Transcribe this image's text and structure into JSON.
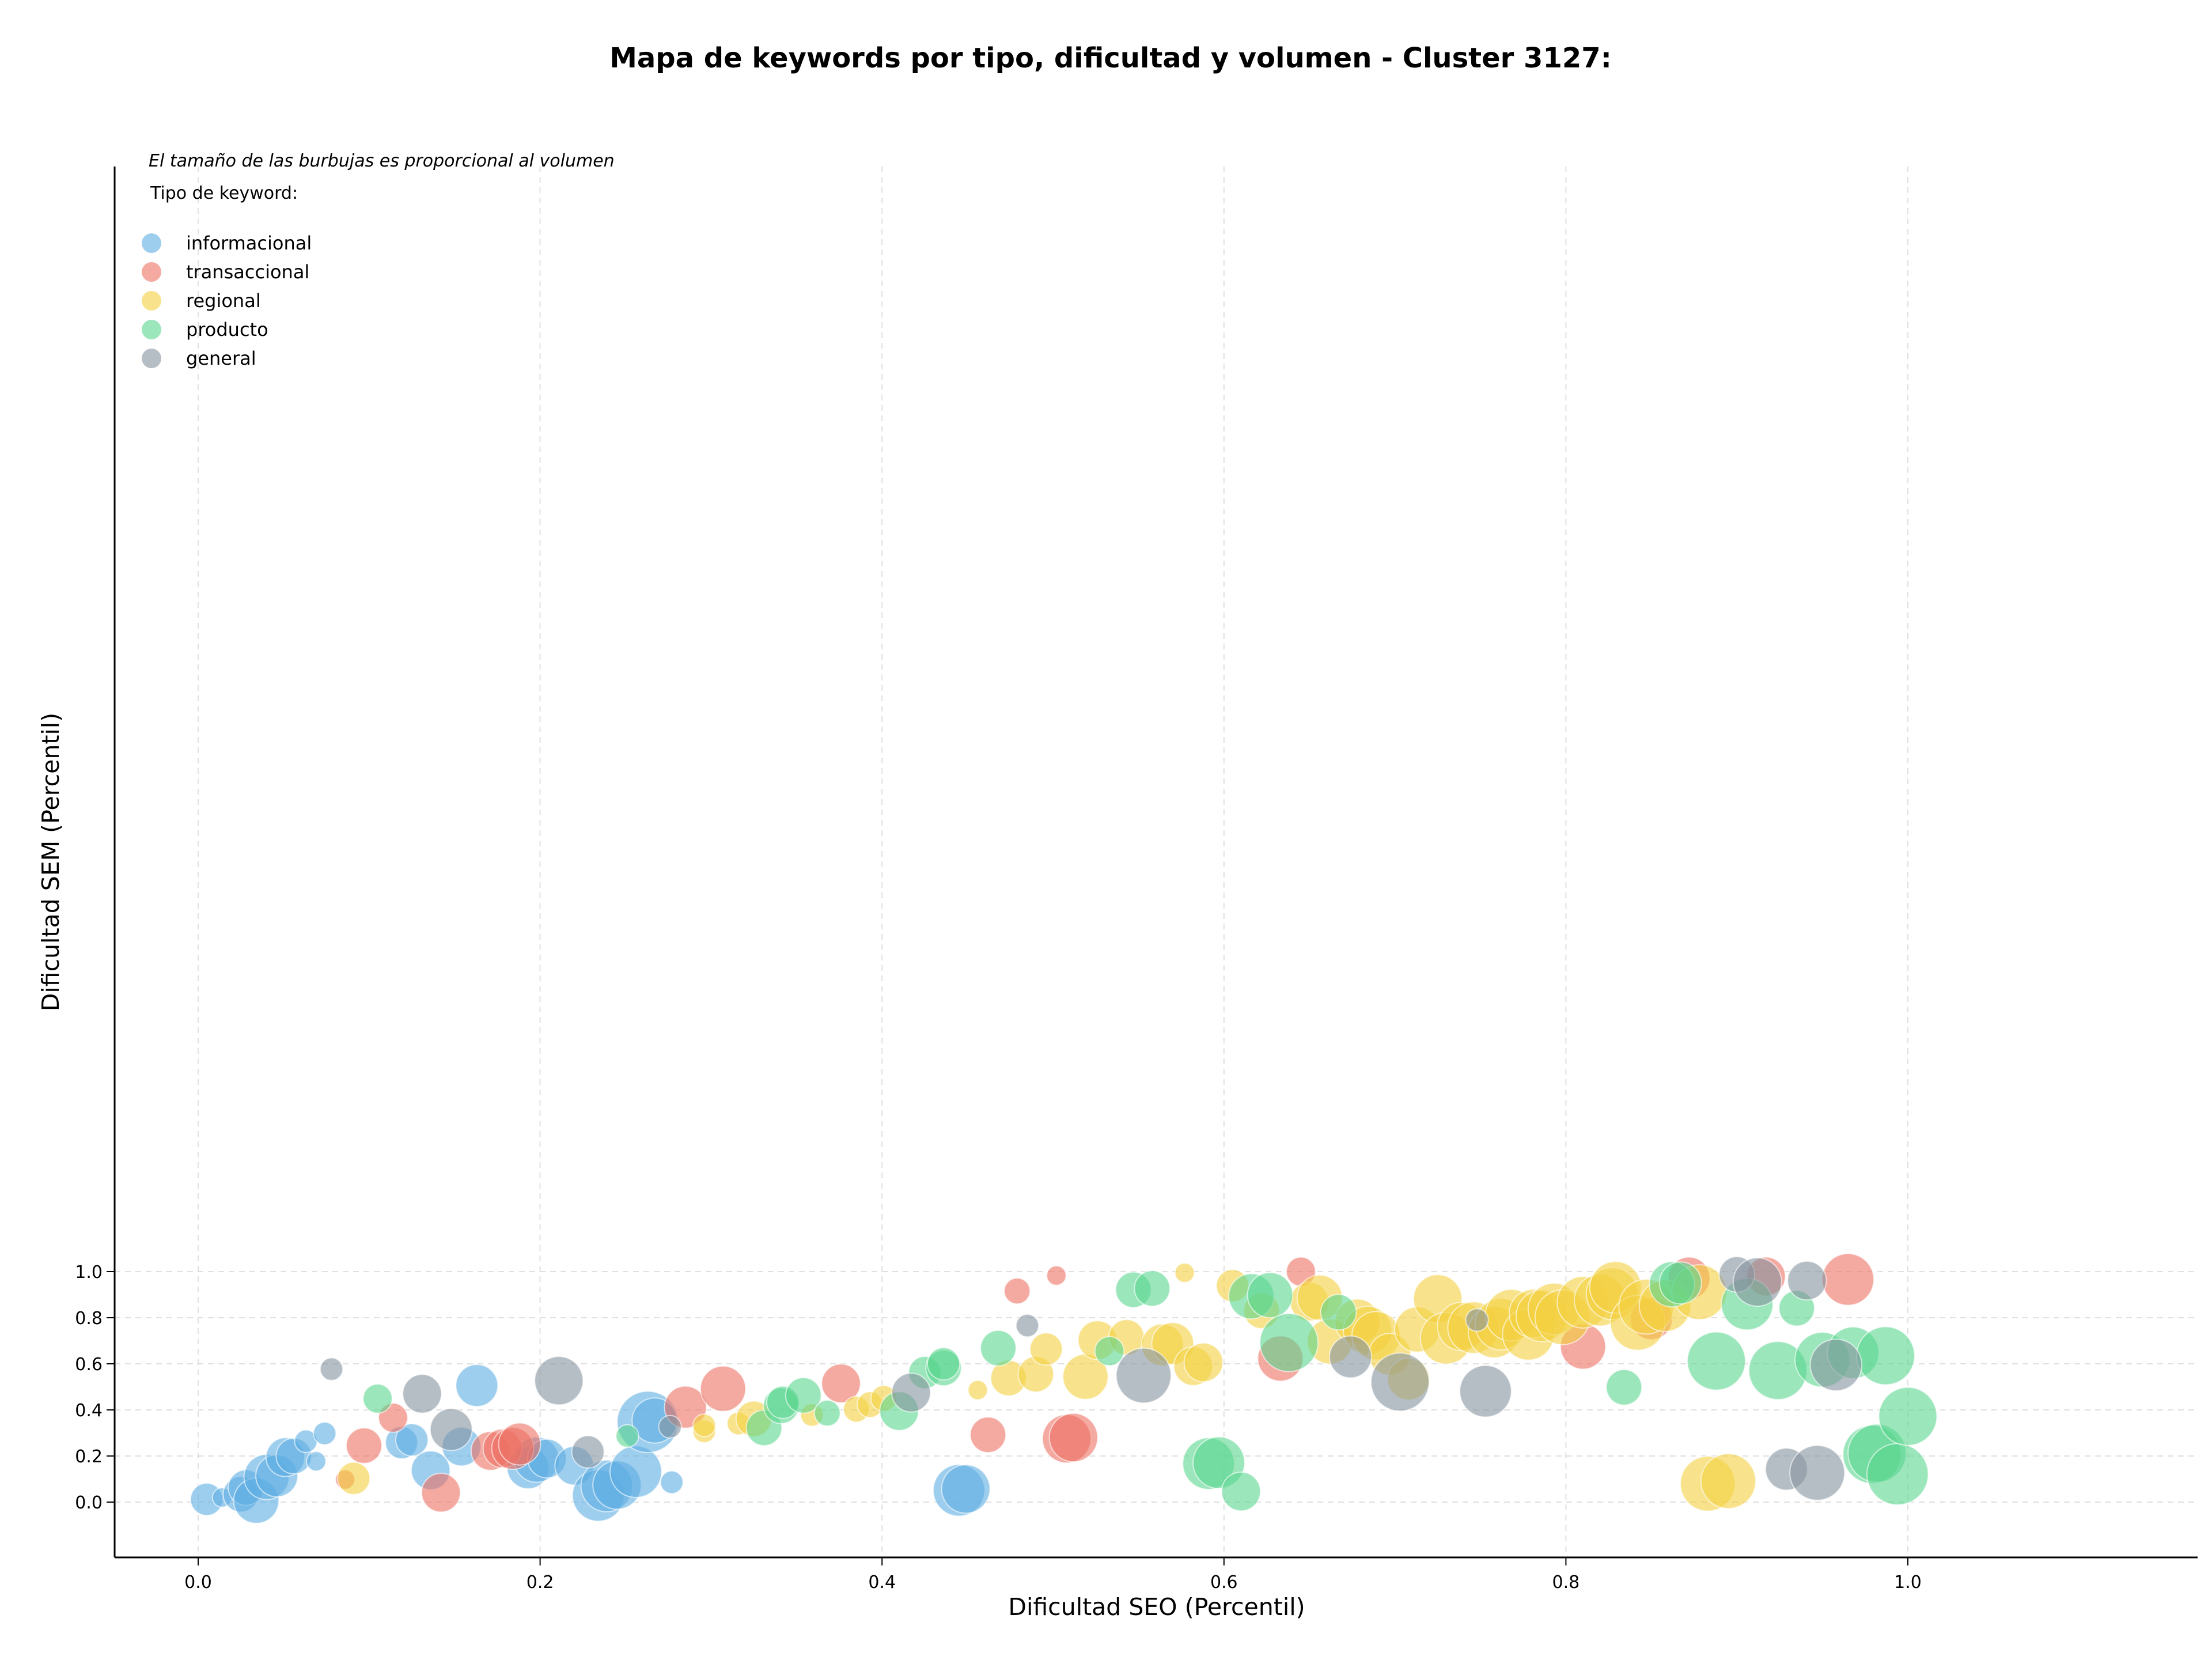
{
  "chart_data": {
    "type": "scatter",
    "title": "Mapa de keywords por tipo, dificultad y volumen - Cluster 3127:",
    "xlabel": "Dificultad SEO (Percentil)",
    "ylabel": "Dificultad SEM (Percentil)",
    "xlim": [
      -0.045,
      1.05
    ],
    "ylim": [
      -0.043,
      1.05
    ],
    "xticks": [
      "0.0",
      "0.2",
      "0.4",
      "0.6",
      "0.8",
      "1.0"
    ],
    "yticks": [
      "0.0",
      "0.2",
      "0.4",
      "0.6",
      "0.8",
      "1.0"
    ],
    "grid": true,
    "size_note": "El tamaño de las burbujas es proporcional al volumen",
    "legend_title": "Tipo de keyword:",
    "legend_position": "top-left",
    "series": [
      {
        "name": "informacional",
        "color": "#5DADE2",
        "points": [
          [
            0.005,
            0.012,
            1.0
          ],
          [
            0.014,
            0.02,
            0.6
          ],
          [
            0.025,
            0.034,
            1.1
          ],
          [
            0.028,
            0.063,
            1.1
          ],
          [
            0.034,
            0.006,
            1.4
          ],
          [
            0.04,
            0.109,
            1.4
          ],
          [
            0.046,
            0.114,
            1.3
          ],
          [
            0.051,
            0.195,
            1.2
          ],
          [
            0.056,
            0.2,
            1.1
          ],
          [
            0.063,
            0.264,
            0.7
          ],
          [
            0.069,
            0.177,
            0.6
          ],
          [
            0.074,
            0.298,
            0.7
          ],
          [
            0.119,
            0.258,
            1.0
          ],
          [
            0.125,
            0.27,
            1.0
          ],
          [
            0.136,
            0.138,
            1.2
          ],
          [
            0.154,
            0.241,
            1.2
          ],
          [
            0.163,
            0.506,
            1.3
          ],
          [
            0.193,
            0.149,
            1.3
          ],
          [
            0.198,
            0.184,
            1.4
          ],
          [
            0.204,
            0.189,
            1.2
          ],
          [
            0.22,
            0.158,
            1.2
          ],
          [
            0.234,
            0.029,
            1.6
          ],
          [
            0.239,
            0.07,
            1.6
          ],
          [
            0.245,
            0.074,
            1.5
          ],
          [
            0.256,
            0.132,
            1.6
          ],
          [
            0.263,
            0.348,
            1.9
          ],
          [
            0.267,
            0.354,
            1.4
          ],
          [
            0.277,
            0.086,
            0.7
          ],
          [
            0.445,
            0.051,
            1.6
          ],
          [
            0.449,
            0.057,
            1.5
          ]
        ]
      },
      {
        "name": "transaccional",
        "color": "#EC7063",
        "points": [
          [
            0.086,
            0.098,
            0.6
          ],
          [
            0.097,
            0.245,
            1.1
          ],
          [
            0.114,
            0.366,
            0.9
          ],
          [
            0.142,
            0.041,
            1.2
          ],
          [
            0.171,
            0.222,
            1.2
          ],
          [
            0.178,
            0.233,
            1.2
          ],
          [
            0.184,
            0.233,
            1.3
          ],
          [
            0.188,
            0.252,
            1.3
          ],
          [
            0.285,
            0.412,
            1.3
          ],
          [
            0.307,
            0.492,
            1.4
          ],
          [
            0.376,
            0.515,
            1.2
          ],
          [
            0.462,
            0.292,
            1.1
          ],
          [
            0.479,
            0.916,
            0.8
          ],
          [
            0.502,
            0.983,
            0.6
          ],
          [
            0.508,
            0.275,
            1.5
          ],
          [
            0.512,
            0.28,
            1.5
          ],
          [
            0.633,
            0.623,
            1.4
          ],
          [
            0.645,
            1.0,
            0.9
          ],
          [
            0.81,
            0.675,
            1.4
          ],
          [
            0.85,
            0.796,
            1.3
          ],
          [
            0.872,
            0.972,
            1.3
          ],
          [
            0.917,
            0.979,
            1.2
          ],
          [
            0.965,
            0.966,
            1.6
          ]
        ]
      },
      {
        "name": "regional",
        "color": "#F4D03F",
        "points": [
          [
            0.091,
            0.103,
            1.0
          ],
          [
            0.296,
            0.307,
            0.7
          ],
          [
            0.296,
            0.333,
            0.7
          ],
          [
            0.316,
            0.341,
            0.7
          ],
          [
            0.325,
            0.361,
            1.1
          ],
          [
            0.359,
            0.378,
            0.7
          ],
          [
            0.385,
            0.403,
            0.8
          ],
          [
            0.393,
            0.423,
            0.8
          ],
          [
            0.401,
            0.45,
            0.8
          ],
          [
            0.456,
            0.486,
            0.6
          ],
          [
            0.474,
            0.538,
            1.1
          ],
          [
            0.49,
            0.555,
            1.1
          ],
          [
            0.496,
            0.664,
            1.0
          ],
          [
            0.519,
            0.544,
            1.4
          ],
          [
            0.526,
            0.703,
            1.2
          ],
          [
            0.543,
            0.715,
            1.1
          ],
          [
            0.564,
            0.682,
            1.3
          ],
          [
            0.57,
            0.688,
            1.3
          ],
          [
            0.577,
            0.995,
            0.6
          ],
          [
            0.582,
            0.59,
            1.2
          ],
          [
            0.588,
            0.606,
            1.2
          ],
          [
            0.605,
            0.939,
            1.0
          ],
          [
            0.622,
            0.83,
            1.1
          ],
          [
            0.65,
            0.87,
            1.2
          ],
          [
            0.656,
            0.887,
            1.4
          ],
          [
            0.662,
            0.697,
            1.4
          ],
          [
            0.678,
            0.783,
            1.4
          ],
          [
            0.684,
            0.745,
            1.5
          ],
          [
            0.689,
            0.722,
            1.5
          ],
          [
            0.697,
            0.641,
            1.3
          ],
          [
            0.708,
            0.534,
            1.3
          ],
          [
            0.713,
            0.749,
            1.4
          ],
          [
            0.725,
            0.882,
            1.5
          ],
          [
            0.73,
            0.711,
            1.6
          ],
          [
            0.739,
            0.762,
            1.5
          ],
          [
            0.746,
            0.757,
            1.6
          ],
          [
            0.758,
            0.738,
            1.6
          ],
          [
            0.762,
            0.772,
            1.6
          ],
          [
            0.768,
            0.811,
            1.6
          ],
          [
            0.778,
            0.728,
            1.6
          ],
          [
            0.781,
            0.818,
            1.5
          ],
          [
            0.786,
            0.808,
            1.6
          ],
          [
            0.793,
            0.838,
            1.6
          ],
          [
            0.798,
            0.802,
            1.7
          ],
          [
            0.81,
            0.867,
            1.6
          ],
          [
            0.82,
            0.876,
            1.6
          ],
          [
            0.827,
            0.904,
            1.6
          ],
          [
            0.829,
            0.932,
            1.6
          ],
          [
            0.842,
            0.778,
            1.7
          ],
          [
            0.847,
            0.848,
            1.7
          ],
          [
            0.858,
            0.852,
            1.6
          ],
          [
            0.878,
            0.911,
            1.7
          ],
          [
            0.883,
            0.08,
            1.7
          ],
          [
            0.895,
            0.091,
            1.7
          ]
        ]
      },
      {
        "name": "producto",
        "color": "#58D68D",
        "points": [
          [
            0.105,
            0.449,
            0.9
          ],
          [
            0.251,
            0.287,
            0.7
          ],
          [
            0.331,
            0.322,
            1.1
          ],
          [
            0.341,
            0.418,
            1.1
          ],
          [
            0.342,
            0.433,
            1.0
          ],
          [
            0.354,
            0.463,
            1.1
          ],
          [
            0.368,
            0.386,
            0.8
          ],
          [
            0.41,
            0.395,
            1.2
          ],
          [
            0.425,
            0.562,
            1.0
          ],
          [
            0.436,
            0.582,
            1.1
          ],
          [
            0.436,
            0.6,
            1.0
          ],
          [
            0.468,
            0.668,
            1.1
          ],
          [
            0.533,
            0.655,
            0.9
          ],
          [
            0.547,
            0.921,
            1.1
          ],
          [
            0.558,
            0.927,
            1.1
          ],
          [
            0.591,
            0.167,
            1.6
          ],
          [
            0.597,
            0.171,
            1.6
          ],
          [
            0.61,
            0.046,
            1.2
          ],
          [
            0.616,
            0.893,
            1.4
          ],
          [
            0.627,
            0.898,
            1.4
          ],
          [
            0.638,
            0.692,
            1.8
          ],
          [
            0.667,
            0.824,
            1.1
          ],
          [
            0.834,
            0.498,
            1.1
          ],
          [
            0.862,
            0.945,
            1.4
          ],
          [
            0.867,
            0.951,
            1.3
          ],
          [
            0.888,
            0.612,
            1.8
          ],
          [
            0.906,
            0.859,
            1.6
          ],
          [
            0.924,
            0.571,
            1.8
          ],
          [
            0.935,
            0.841,
            1.1
          ],
          [
            0.95,
            0.618,
            1.7
          ],
          [
            0.968,
            0.648,
            1.6
          ],
          [
            0.979,
            0.207,
            1.8
          ],
          [
            0.982,
            0.212,
            1.8
          ],
          [
            0.987,
            0.635,
            1.8
          ],
          [
            0.994,
            0.121,
            1.9
          ],
          [
            1.0,
            0.372,
            1.8
          ]
        ]
      },
      {
        "name": "general",
        "color": "#85929E",
        "points": [
          [
            0.078,
            0.577,
            0.7
          ],
          [
            0.131,
            0.47,
            1.2
          ],
          [
            0.148,
            0.315,
            1.3
          ],
          [
            0.211,
            0.527,
            1.5
          ],
          [
            0.228,
            0.218,
            1.0
          ],
          [
            0.276,
            0.327,
            0.7
          ],
          [
            0.417,
            0.475,
            1.2
          ],
          [
            0.485,
            0.766,
            0.7
          ],
          [
            0.553,
            0.549,
            1.7
          ],
          [
            0.674,
            0.63,
            1.3
          ],
          [
            0.703,
            0.521,
            1.8
          ],
          [
            0.748,
            0.79,
            0.7
          ],
          [
            0.753,
            0.481,
            1.6
          ],
          [
            0.9,
            0.988,
            1.1
          ],
          [
            0.912,
            0.955,
            1.5
          ],
          [
            0.929,
            0.143,
            1.3
          ],
          [
            0.941,
            0.961,
            1.2
          ],
          [
            0.947,
            0.127,
            1.7
          ],
          [
            0.958,
            0.595,
            1.6
          ]
        ]
      }
    ]
  }
}
